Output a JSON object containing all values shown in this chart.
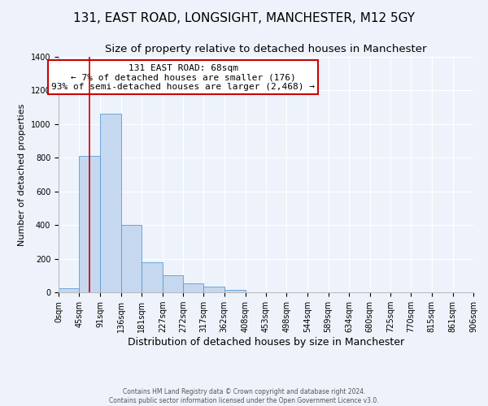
{
  "title": "131, EAST ROAD, LONGSIGHT, MANCHESTER, M12 5GY",
  "subtitle": "Size of property relative to detached houses in Manchester",
  "xlabel": "Distribution of detached houses by size in Manchester",
  "ylabel": "Number of detached properties",
  "bin_edges": [
    0,
    45,
    91,
    136,
    181,
    227,
    272,
    317,
    362,
    408,
    453,
    498,
    544,
    589,
    634,
    680,
    725,
    770,
    815,
    861,
    906
  ],
  "bin_labels": [
    "0sqm",
    "45sqm",
    "91sqm",
    "136sqm",
    "181sqm",
    "227sqm",
    "272sqm",
    "317sqm",
    "362sqm",
    "408sqm",
    "453sqm",
    "498sqm",
    "544sqm",
    "589sqm",
    "634sqm",
    "680sqm",
    "725sqm",
    "770sqm",
    "815sqm",
    "861sqm",
    "906sqm"
  ],
  "counts": [
    25,
    810,
    1060,
    400,
    180,
    100,
    55,
    35,
    15,
    0,
    0,
    0,
    0,
    0,
    0,
    0,
    0,
    0,
    0,
    0
  ],
  "ylim": [
    0,
    1400
  ],
  "yticks": [
    0,
    200,
    400,
    600,
    800,
    1000,
    1200,
    1400
  ],
  "bar_color": "#c5d8ef",
  "bar_edge_color": "#5b9bd5",
  "red_line_x": 68,
  "annotation_title": "131 EAST ROAD: 68sqm",
  "annotation_line1": "← 7% of detached houses are smaller (176)",
  "annotation_line2": "93% of semi-detached houses are larger (2,468) →",
  "annotation_box_color": "#ffffff",
  "annotation_box_edge": "#cc0000",
  "red_line_color": "#cc0000",
  "footer_line1": "Contains HM Land Registry data © Crown copyright and database right 2024.",
  "footer_line2": "Contains public sector information licensed under the Open Government Licence v3.0.",
  "background_color": "#eef3fb",
  "plot_background": "#eef3fb",
  "grid_color": "#ffffff",
  "title_fontsize": 11,
  "subtitle_fontsize": 9.5,
  "xlabel_fontsize": 9,
  "ylabel_fontsize": 8,
  "tick_fontsize": 7,
  "footer_fontsize": 5.5,
  "annotation_fontsize": 8
}
